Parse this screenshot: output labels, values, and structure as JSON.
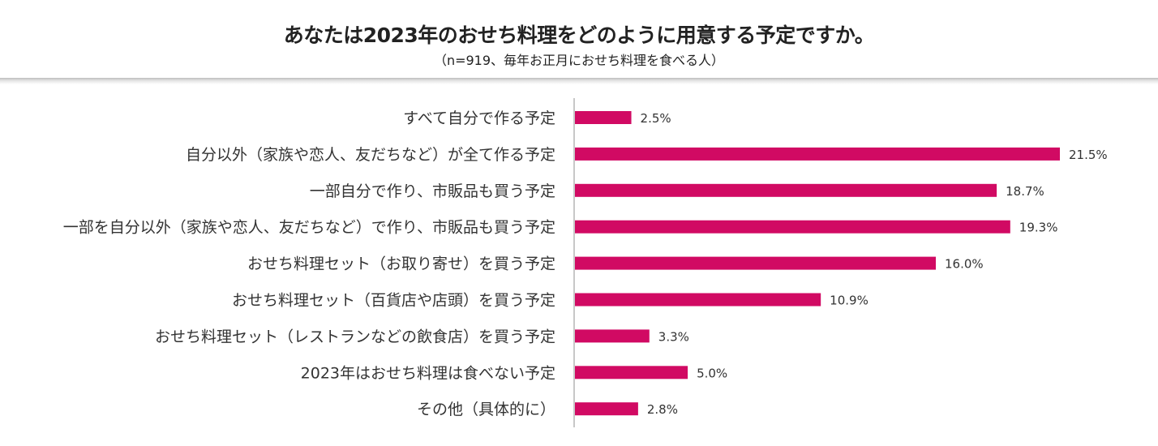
{
  "header": {
    "title": "あなたは2023年のおせち料理をどのように用意する予定ですか。",
    "subtitle": "（n=919、毎年お正月におせち料理を食べる人）"
  },
  "chart_data": {
    "type": "bar",
    "orientation": "horizontal",
    "categories": [
      "すべて自分で作る予定",
      "自分以外（家族や恋人、友だちなど）が全て作る予定",
      "一部自分で作り、市販品も買う予定",
      "一部を自分以外（家族や恋人、友だちなど）で作り、市販品も買う予定",
      "おせち料理セット（お取り寄せ）を買う予定",
      "おせち料理セット（百貨店や店頭）を買う予定",
      "おせち料理セット（レストランなどの飲食店）を買う予定",
      "2023年はおせち料理は食べない予定",
      "その他（具体的に）"
    ],
    "values": [
      2.5,
      21.5,
      18.7,
      19.3,
      16.0,
      10.9,
      3.3,
      5.0,
      2.8
    ],
    "labels": [
      "2.5%",
      "21.5%",
      "18.7%",
      "19.3%",
      "16.0%",
      "10.9%",
      "3.3%",
      "5.0%",
      "2.8%"
    ],
    "bar_color": "#d10a63",
    "axis_color": "#c8c8c8",
    "grid": false,
    "legend": false
  }
}
